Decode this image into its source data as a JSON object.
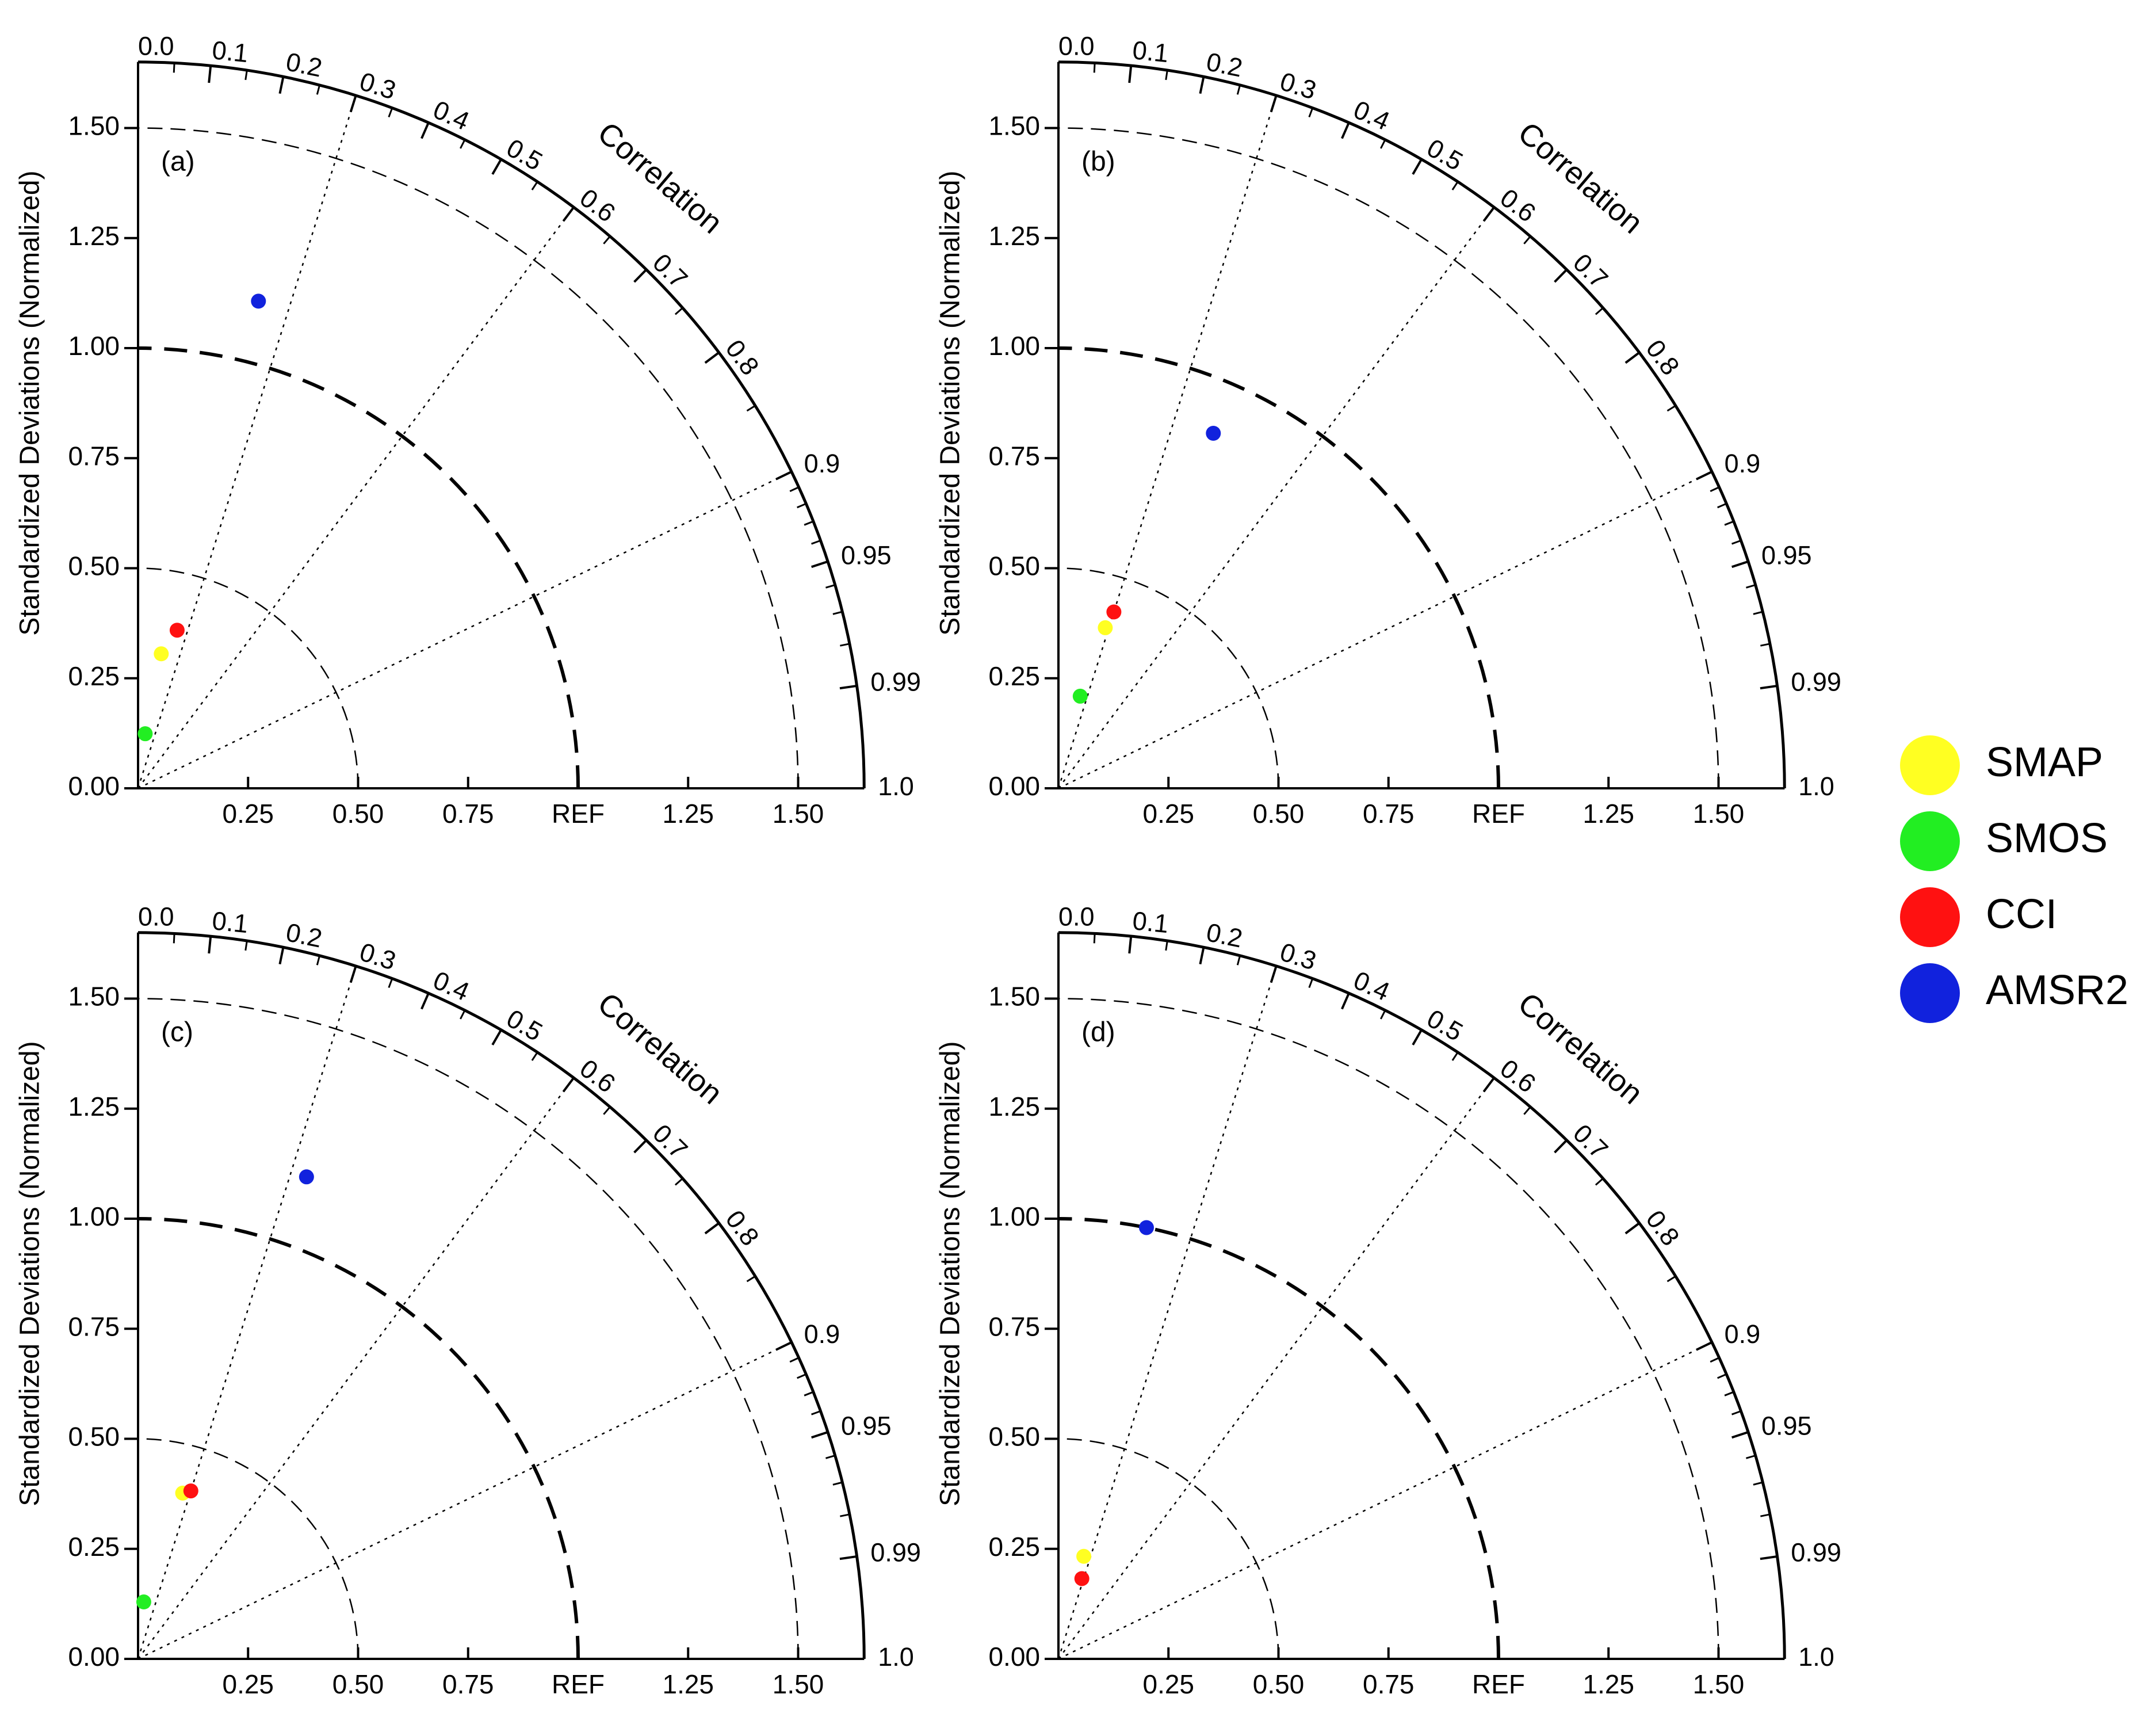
{
  "chart_data": [
    {
      "type": "scatter",
      "subtype": "taylor-diagram",
      "panel_label": "(a)",
      "ylabel": "Standardized Deviations (Normalized)",
      "corr_label": "Correlation",
      "sd_ticks": [
        {
          "v": 0.25,
          "label": "0.25"
        },
        {
          "v": 0.5,
          "label": "0.50"
        },
        {
          "v": 0.75,
          "label": "0.75"
        },
        {
          "v": 1.0,
          "label": "REF"
        },
        {
          "v": 1.25,
          "label": "1.25"
        },
        {
          "v": 1.5,
          "label": "1.50"
        }
      ],
      "y_ticks": [
        "0.00",
        "0.25",
        "0.50",
        "0.75",
        "1.00",
        "1.25",
        "1.50"
      ],
      "corr_ticks": [
        "0.0",
        "0.1",
        "0.2",
        "0.3",
        "0.4",
        "0.5",
        "0.6",
        "0.7",
        "0.8",
        "0.9",
        "0.95",
        "0.99",
        "1.0"
      ],
      "sd_max": 1.65,
      "points": [
        {
          "series": "SMAP",
          "corr": 0.17,
          "sd": 0.31
        },
        {
          "series": "SMOS",
          "corr": 0.13,
          "sd": 0.125
        },
        {
          "series": "CCI",
          "corr": 0.24,
          "sd": 0.37
        },
        {
          "series": "AMSR2",
          "corr": 0.24,
          "sd": 1.14
        }
      ]
    },
    {
      "type": "scatter",
      "subtype": "taylor-diagram",
      "panel_label": "(b)",
      "ylabel": "Standardized Deviations (Normalized)",
      "corr_label": "Correlation",
      "sd_ticks": [
        {
          "v": 0.25,
          "label": "0.25"
        },
        {
          "v": 0.5,
          "label": "0.50"
        },
        {
          "v": 0.75,
          "label": "0.75"
        },
        {
          "v": 1.0,
          "label": "REF"
        },
        {
          "v": 1.25,
          "label": "1.25"
        },
        {
          "v": 1.5,
          "label": "1.50"
        }
      ],
      "y_ticks": [
        "0.00",
        "0.25",
        "0.50",
        "0.75",
        "1.00",
        "1.25",
        "1.50"
      ],
      "corr_ticks": [
        "0.0",
        "0.1",
        "0.2",
        "0.3",
        "0.4",
        "0.5",
        "0.6",
        "0.7",
        "0.8",
        "0.9",
        "0.95",
        "0.99",
        "1.0"
      ],
      "sd_max": 1.65,
      "points": [
        {
          "series": "SMAP",
          "corr": 0.28,
          "sd": 0.38
        },
        {
          "series": "SMOS",
          "corr": 0.23,
          "sd": 0.215
        },
        {
          "series": "CCI",
          "corr": 0.3,
          "sd": 0.42
        },
        {
          "series": "AMSR2",
          "corr": 0.4,
          "sd": 0.88
        }
      ]
    },
    {
      "type": "scatter",
      "subtype": "taylor-diagram",
      "panel_label": "(c)",
      "ylabel": "Standardized Deviations (Normalized)",
      "corr_label": "Correlation",
      "sd_ticks": [
        {
          "v": 0.25,
          "label": "0.25"
        },
        {
          "v": 0.5,
          "label": "0.50"
        },
        {
          "v": 0.75,
          "label": "0.75"
        },
        {
          "v": 1.0,
          "label": "REF"
        },
        {
          "v": 1.25,
          "label": "1.25"
        },
        {
          "v": 1.5,
          "label": "1.50"
        }
      ],
      "y_ticks": [
        "0.00",
        "0.25",
        "0.50",
        "0.75",
        "1.00",
        "1.25",
        "1.50"
      ],
      "corr_ticks": [
        "0.0",
        "0.1",
        "0.2",
        "0.3",
        "0.4",
        "0.5",
        "0.6",
        "0.7",
        "0.8",
        "0.9",
        "0.95",
        "0.99",
        "1.0"
      ],
      "sd_max": 1.65,
      "points": [
        {
          "series": "SMAP",
          "corr": 0.26,
          "sd": 0.39
        },
        {
          "series": "SMOS",
          "corr": 0.1,
          "sd": 0.13
        },
        {
          "series": "CCI",
          "corr": 0.3,
          "sd": 0.4
        },
        {
          "series": "AMSR2",
          "corr": 0.33,
          "sd": 1.16
        }
      ]
    },
    {
      "type": "scatter",
      "subtype": "taylor-diagram",
      "panel_label": "(d)",
      "ylabel": "Standardized Deviations (Normalized)",
      "corr_label": "Correlation",
      "sd_ticks": [
        {
          "v": 0.25,
          "label": "0.25"
        },
        {
          "v": 0.5,
          "label": "0.50"
        },
        {
          "v": 0.75,
          "label": "0.75"
        },
        {
          "v": 1.0,
          "label": "REF"
        },
        {
          "v": 1.25,
          "label": "1.25"
        },
        {
          "v": 1.5,
          "label": "1.50"
        }
      ],
      "y_ticks": [
        "0.00",
        "0.25",
        "0.50",
        "0.75",
        "1.00",
        "1.25",
        "1.50"
      ],
      "corr_ticks": [
        "0.0",
        "0.1",
        "0.2",
        "0.3",
        "0.4",
        "0.5",
        "0.6",
        "0.7",
        "0.8",
        "0.9",
        "0.95",
        "0.99",
        "1.0"
      ],
      "sd_max": 1.65,
      "points": [
        {
          "series": "SMAP",
          "corr": 0.24,
          "sd": 0.24
        },
        {
          "series": "CCI",
          "corr": 0.28,
          "sd": 0.19
        },
        {
          "series": "AMSR2",
          "corr": 0.2,
          "sd": 1.0
        }
      ]
    }
  ],
  "legend": [
    {
      "name": "SMAP",
      "color": "#ffff22"
    },
    {
      "name": "SMOS",
      "color": "#22ee22"
    },
    {
      "name": "CCI",
      "color": "#ff1111"
    },
    {
      "name": "AMSR2",
      "color": "#1122dd"
    }
  ],
  "colors": {
    "line": "#000000",
    "background": "#ffffff"
  }
}
